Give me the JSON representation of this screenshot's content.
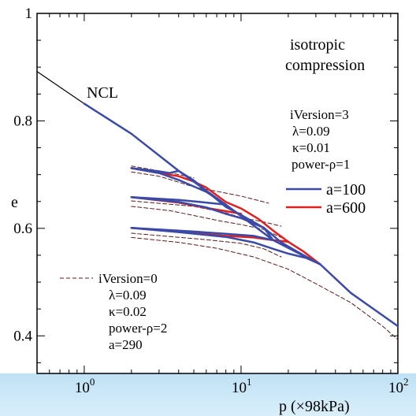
{
  "chart_data": {
    "type": "line",
    "xlabel": "p (×98kPa)",
    "ylabel": "e",
    "x_scale": "log",
    "xlim": [
      0.5,
      100
    ],
    "ylim": [
      0.33,
      1.0
    ],
    "x_ticks": [
      {
        "value": 1,
        "base": "10",
        "exp": "0"
      },
      {
        "value": 10,
        "base": "10",
        "exp": "1"
      },
      {
        "value": 100,
        "base": "10",
        "exp": "2"
      }
    ],
    "y_ticks": [
      {
        "value": 0.4,
        "label": "0.4"
      },
      {
        "value": 0.6,
        "label": "0.6"
      },
      {
        "value": 0.8,
        "label": "0.8"
      },
      {
        "value": 1.0,
        "label": "1"
      }
    ],
    "annotations": {
      "ncl": "NCL",
      "title_line1": "isotropic",
      "title_line2": "compression",
      "params_a": [
        "iVersion=3",
        "λ=0.09",
        "κ=0.01",
        "power-ρ=1"
      ],
      "params_b": [
        "iVersion=0",
        "λ=0.09",
        "κ=0.02",
        "power-ρ=2",
        "a=290"
      ]
    },
    "legend": {
      "placement": "right",
      "entries": [
        {
          "label": "a=100",
          "color": "#3a4aa6",
          "style": "solid"
        },
        {
          "label": "a=600",
          "color": "#e02020",
          "style": "solid"
        },
        {
          "label": "",
          "color": "#5a1a1a",
          "style": "dashed"
        }
      ]
    },
    "series": [
      {
        "name": "NCL",
        "color": "#000000",
        "style": "solid",
        "width": 1.2,
        "points": [
          [
            0.5,
            0.892
          ],
          [
            1.0,
            0.832
          ]
        ]
      },
      {
        "name": "a=600",
        "color": "#e02020",
        "style": "solid",
        "width": 2.5,
        "points": [
          [
            2,
            0.712
          ],
          [
            3.0,
            0.703
          ],
          [
            4.0,
            0.697
          ],
          [
            5.0,
            0.687
          ],
          [
            6.0,
            0.676
          ],
          [
            8.0,
            0.649
          ],
          [
            10.0,
            0.637
          ],
          [
            13.0,
            0.617
          ],
          [
            16.0,
            0.596
          ],
          [
            20.0,
            0.575
          ],
          [
            25.0,
            0.557
          ],
          [
            32.0,
            0.533
          ]
        ]
      },
      {
        "name": "a=600",
        "color": "#e02020",
        "style": "solid",
        "width": 2.5,
        "points": [
          [
            2,
            0.658
          ],
          [
            4.0,
            0.648
          ],
          [
            6.0,
            0.638
          ],
          [
            8.0,
            0.632
          ],
          [
            10.0,
            0.627
          ]
        ]
      },
      {
        "name": "a=600",
        "color": "#e02020",
        "style": "solid",
        "width": 2.5,
        "points": [
          [
            2,
            0.601
          ],
          [
            5.0,
            0.591
          ],
          [
            8.0,
            0.586
          ],
          [
            12.0,
            0.583
          ],
          [
            16.0,
            0.578
          ],
          [
            20.0,
            0.575
          ]
        ]
      },
      {
        "name": "a=100",
        "color": "#3a4aa6",
        "style": "solid",
        "width": 2.5,
        "points": [
          [
            1.0,
            0.832
          ],
          [
            2.0,
            0.776
          ],
          [
            4.0,
            0.707
          ],
          [
            8.0,
            0.644
          ],
          [
            16.0,
            0.578
          ],
          [
            32.0,
            0.533
          ],
          [
            50.0,
            0.48
          ],
          [
            100.0,
            0.418
          ]
        ]
      },
      {
        "name": "a=100",
        "color": "#3a4aa6",
        "style": "solid",
        "width": 2.5,
        "points": [
          [
            2,
            0.712
          ],
          [
            3.0,
            0.706
          ],
          [
            3.5,
            0.703
          ],
          [
            4.0,
            0.707
          ],
          [
            5.0,
            0.689
          ],
          [
            6.0,
            0.67
          ],
          [
            8.0,
            0.64
          ],
          [
            10.0,
            0.625
          ],
          [
            14.0,
            0.601
          ],
          [
            18.0,
            0.574
          ],
          [
            25.0,
            0.55
          ],
          [
            32.0,
            0.533
          ]
        ]
      },
      {
        "name": "a=100",
        "color": "#3a4aa6",
        "style": "solid",
        "width": 2.5,
        "points": [
          [
            2,
            0.712
          ],
          [
            3.0,
            0.703
          ],
          [
            4.0,
            0.69
          ],
          [
            6.0,
            0.668
          ],
          [
            8.0,
            0.644
          ]
        ]
      },
      {
        "name": "a=100",
        "color": "#3a4aa6",
        "style": "solid",
        "width": 2.5,
        "points": [
          [
            2,
            0.658
          ],
          [
            4.0,
            0.653
          ],
          [
            6.0,
            0.648
          ],
          [
            8.0,
            0.644
          ]
        ]
      },
      {
        "name": "a=100",
        "color": "#3a4aa6",
        "style": "solid",
        "width": 2.5,
        "points": [
          [
            2,
            0.658
          ],
          [
            4.0,
            0.649
          ],
          [
            6.0,
            0.639
          ],
          [
            8.0,
            0.627
          ],
          [
            10.0,
            0.619
          ],
          [
            14.0,
            0.601
          ],
          [
            16.0,
            0.578
          ]
        ]
      },
      {
        "name": "a=100",
        "color": "#3a4aa6",
        "style": "solid",
        "width": 2.5,
        "points": [
          [
            2,
            0.601
          ],
          [
            5.0,
            0.594
          ],
          [
            8.0,
            0.59
          ],
          [
            12.0,
            0.586
          ],
          [
            16.0,
            0.578
          ]
        ]
      },
      {
        "name": "a=100",
        "color": "#3a4aa6",
        "style": "solid",
        "width": 2.5,
        "points": [
          [
            2,
            0.601
          ],
          [
            4.0,
            0.593
          ],
          [
            8.0,
            0.584
          ],
          [
            12.0,
            0.574
          ],
          [
            16.0,
            0.562
          ],
          [
            20.0,
            0.553
          ],
          [
            26.0,
            0.545
          ],
          [
            32.0,
            0.533
          ]
        ]
      },
      {
        "name": "iVersion=0",
        "color": "#5a1a1a",
        "style": "dashed",
        "width": 1,
        "points": [
          [
            2,
            0.716
          ],
          [
            3.0,
            0.707
          ],
          [
            4.0,
            0.7
          ],
          [
            5.0,
            0.694
          ]
        ]
      },
      {
        "name": "iVersion=0",
        "color": "#5a1a1a",
        "style": "dashed",
        "width": 1,
        "points": [
          [
            2,
            0.705
          ],
          [
            3.0,
            0.697
          ],
          [
            4.0,
            0.686
          ],
          [
            5.0,
            0.677
          ],
          [
            7.0,
            0.669
          ],
          [
            10.0,
            0.66
          ],
          [
            15.0,
            0.647
          ]
        ]
      },
      {
        "name": "iVersion=0",
        "color": "#5a1a1a",
        "style": "dashed",
        "width": 1,
        "points": [
          [
            2,
            0.651
          ],
          [
            5.0,
            0.641
          ],
          [
            8.0,
            0.629
          ],
          [
            10.0,
            0.62
          ],
          [
            14.0,
            0.612
          ],
          [
            18.0,
            0.604
          ]
        ]
      },
      {
        "name": "iVersion=0",
        "color": "#5a1a1a",
        "style": "dashed",
        "width": 1,
        "points": [
          [
            2,
            0.641
          ],
          [
            3.5,
            0.633
          ],
          [
            5.0,
            0.624
          ],
          [
            7.0,
            0.615
          ],
          [
            10.0,
            0.607
          ],
          [
            14.0,
            0.598
          ],
          [
            18.0,
            0.583
          ]
        ]
      },
      {
        "name": "iVersion=0",
        "color": "#5a1a1a",
        "style": "dashed",
        "width": 1,
        "points": [
          [
            2,
            0.591
          ],
          [
            6.0,
            0.579
          ],
          [
            10.0,
            0.572
          ],
          [
            14.0,
            0.562
          ],
          [
            18.0,
            0.547
          ]
        ]
      },
      {
        "name": "iVersion=0",
        "color": "#5a1a1a",
        "style": "dashed",
        "width": 1,
        "points": [
          [
            2,
            0.583
          ],
          [
            4.0,
            0.574
          ],
          [
            7.0,
            0.563
          ],
          [
            12.0,
            0.547
          ],
          [
            20.0,
            0.524
          ],
          [
            30.0,
            0.497
          ],
          [
            50.0,
            0.462
          ],
          [
            80.0,
            0.418
          ],
          [
            100.0,
            0.393
          ]
        ]
      }
    ]
  }
}
